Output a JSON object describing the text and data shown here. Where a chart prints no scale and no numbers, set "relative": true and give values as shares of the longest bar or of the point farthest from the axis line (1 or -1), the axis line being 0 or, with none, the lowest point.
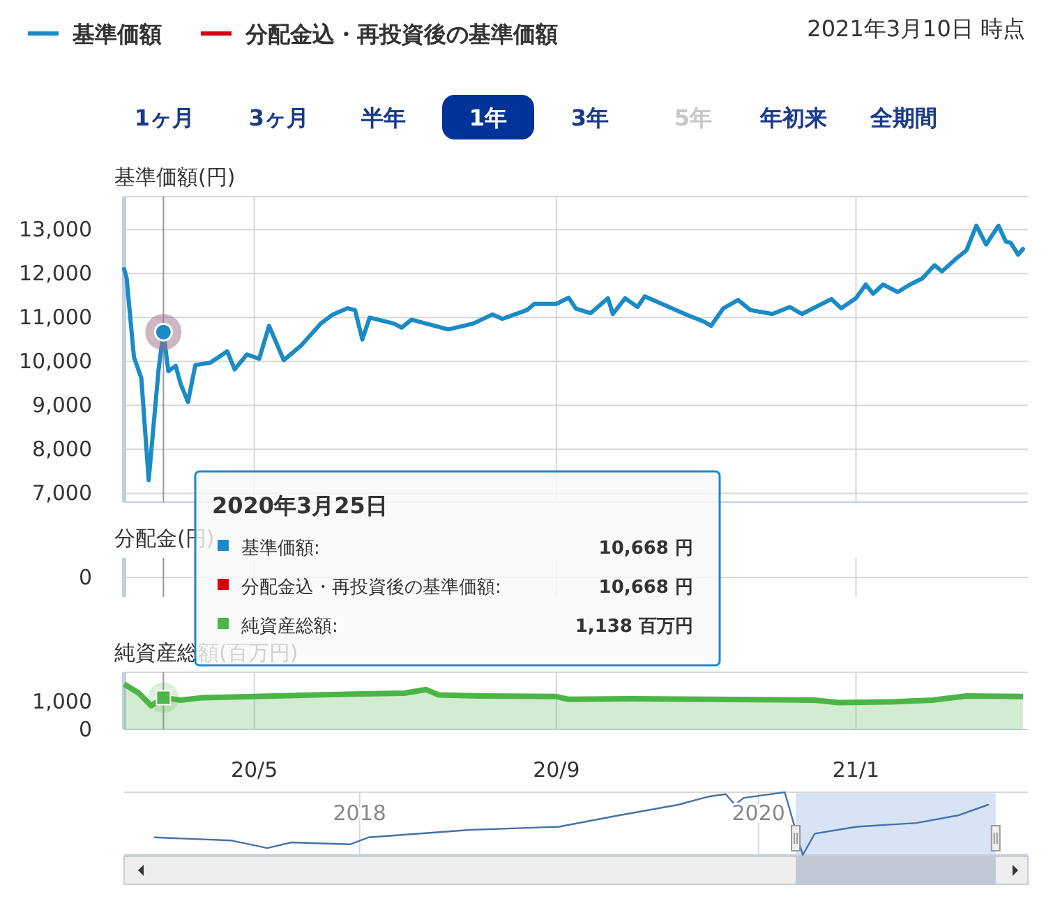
{
  "chart_data": [
    {
      "type": "line",
      "subtitle": "2021年3月10日 時点",
      "ylabel": "基準価額(円)",
      "legend": "top left",
      "grid": true,
      "tick_labels": "y",
      "xlim": [
        "2020-03-09",
        "2021-03-12"
      ],
      "ylim": [
        6800,
        13750
      ],
      "yticks": [
        {
          "value": 7000,
          "label": "7,000"
        },
        {
          "value": 8000,
          "label": "8,000"
        },
        {
          "value": 9000,
          "label": "9,000"
        },
        {
          "value": 10000,
          "label": "10,000"
        },
        {
          "value": 11000,
          "label": "11,000"
        },
        {
          "value": 12000,
          "label": "12,000"
        },
        {
          "value": 13000,
          "label": "13,000"
        }
      ],
      "ref_lines": [
        {
          "axis": "x",
          "value": "2020-03-25",
          "color": "#999999"
        }
      ],
      "x": [
        "2020-03-09",
        "2020-03-10",
        "2020-03-13",
        "2020-03-16",
        "2020-03-19",
        "2020-03-23",
        "2020-03-25",
        "2020-03-27",
        "2020-03-30",
        "2020-04-01",
        "2020-04-04",
        "2020-04-07",
        "2020-04-13",
        "2020-04-20",
        "2020-04-23",
        "2020-04-28",
        "2020-05-03",
        "2020-05-07",
        "2020-05-13",
        "2020-05-20",
        "2020-05-28",
        "2020-06-02",
        "2020-06-08",
        "2020-06-11",
        "2020-06-14",
        "2020-06-17",
        "2020-06-27",
        "2020-06-30",
        "2020-07-04",
        "2020-07-19",
        "2020-07-29",
        "2020-08-06",
        "2020-08-10",
        "2020-08-20",
        "2020-08-23",
        "2020-09-01",
        "2020-09-06",
        "2020-09-09",
        "2020-09-15",
        "2020-09-22",
        "2020-09-24",
        "2020-09-29",
        "2020-10-04",
        "2020-10-07",
        "2020-10-18",
        "2020-10-25",
        "2020-10-31",
        "2020-11-03",
        "2020-11-08",
        "2020-11-14",
        "2020-11-19",
        "2020-11-28",
        "2020-12-05",
        "2020-12-10",
        "2020-12-22",
        "2020-12-26",
        "2021-01-01",
        "2021-01-05",
        "2021-01-08",
        "2021-01-12",
        "2021-01-18",
        "2021-01-23",
        "2021-01-28",
        "2021-02-02",
        "2021-02-05",
        "2021-02-11",
        "2021-02-15",
        "2021-02-19",
        "2021-02-23",
        "2021-02-28",
        "2021-03-03",
        "2021-03-05",
        "2021-03-08",
        "2021-03-10"
      ],
      "series": [
        {
          "name": "基準価額",
          "color": "#1a8bc6",
          "values": [
            12100,
            11900,
            10100,
            9620,
            7300,
            9800,
            10668,
            9780,
            9900,
            9490,
            9080,
            9920,
            9970,
            10230,
            9820,
            10160,
            10060,
            10810,
            10030,
            10360,
            10860,
            11070,
            11210,
            11170,
            10500,
            11000,
            10860,
            10770,
            10950,
            10730,
            10860,
            11070,
            10970,
            11170,
            11310,
            11310,
            11450,
            11200,
            11100,
            11440,
            11080,
            11440,
            11240,
            11480,
            11210,
            11040,
            10910,
            10810,
            11210,
            11400,
            11170,
            11080,
            11240,
            11080,
            11420,
            11210,
            11440,
            11750,
            11540,
            11750,
            11580,
            11750,
            11890,
            12190,
            12050,
            12350,
            12530,
            13090,
            12660,
            13090,
            12730,
            12700,
            12430,
            12560
          ]
        },
        {
          "name": "分配金込・再投資後の基準価額",
          "color": "#d7000f",
          "values": [
            null,
            null,
            null,
            null,
            null,
            null,
            null,
            null,
            null,
            null,
            null,
            null,
            null,
            null,
            null,
            null,
            null,
            null,
            null,
            null,
            null,
            null,
            null,
            null,
            null,
            null,
            null,
            null,
            null,
            null,
            null,
            null,
            null,
            null,
            null,
            null,
            null,
            null,
            null,
            null,
            null,
            null,
            null,
            null,
            null,
            null,
            null,
            null,
            null,
            null,
            null,
            null,
            null,
            null,
            null,
            null,
            null,
            null,
            null,
            null,
            null,
            null,
            null,
            null,
            null,
            null,
            null,
            null,
            null,
            null,
            null,
            null,
            null,
            null
          ]
        }
      ],
      "annotations": [
        "1ヶ月",
        "3ヶ月",
        "半年",
        "1年",
        "3年",
        "5年",
        "年初来",
        "全期間",
        "2020年3月25日",
        "基準価額:",
        "10,668 円",
        "分配金込・再投資後の基準価額:",
        "10,668 円",
        "分配金(円)",
        "0"
      ]
    },
    {
      "type": "area",
      "ylabel": "純資産総額(百万円)",
      "grid": "x",
      "xlim": [
        "2020-03-09",
        "2021-03-12"
      ],
      "xticks": [
        {
          "value": "2020-05-01",
          "label": "20/5"
        },
        {
          "value": "2020-09-01",
          "label": "20/9"
        },
        {
          "value": "2021-01-01",
          "label": "21/1"
        }
      ],
      "ylim": [
        0,
        2050
      ],
      "yticks": [
        0,
        {
          "value": 1000,
          "label": "1,000"
        }
      ],
      "ref_lines": [
        {
          "axis": "x",
          "value": "2020-03-25",
          "color": "#999999"
        }
      ],
      "x": [
        "2020-03-09",
        "2020-03-15",
        "2020-03-20",
        "2020-03-25",
        "2020-04-01",
        "2020-04-10",
        "2020-05-01",
        "2020-06-01",
        "2020-07-01",
        "2020-07-10",
        "2020-07-15",
        "2020-08-01",
        "2020-09-01",
        "2020-09-06",
        "2020-10-01",
        "2020-11-01",
        "2020-12-01",
        "2020-12-15",
        "2020-12-25",
        "2021-01-15",
        "2021-02-01",
        "2021-02-15",
        "2021-03-10"
      ],
      "series": [
        {
          "color": "#4cb548",
          "values": [
            1630,
            1300,
            850,
            1138,
            1050,
            1140,
            1180,
            1250,
            1300,
            1430,
            1240,
            1200,
            1180,
            1080,
            1100,
            1080,
            1060,
            1050,
            960,
            990,
            1050,
            1200,
            1180
          ]
        }
      ],
      "annotations": [
        "純資産総額:",
        "1,138 百万円"
      ]
    },
    {
      "type": "line",
      "relative": true,
      "grid": "x",
      "tick_labels": "x",
      "xlim": [
        "2016-10-27",
        "2021-05-08"
      ],
      "xticks": [
        {
          "value": "2018-01-01",
          "label": "2018"
        },
        {
          "value": "2020-01-01",
          "label": "2020"
        }
      ],
      "bands": [
        {
          "axis": "x",
          "from": "2020-03-09",
          "to": "2021-03-10",
          "color": "#c6d9f1"
        }
      ],
      "x": [
        "2016-12-22",
        "2017-05-12",
        "2017-07-16",
        "2017-08-29",
        "2017-12-15",
        "2018-01-17",
        "2018-07-22",
        "2019-01-01",
        "2019-04-20",
        "2019-08-07",
        "2019-10-01",
        "2019-11-02",
        "2019-11-19",
        "2019-12-05",
        "2020-02-18",
        "2020-03-22",
        "2020-04-13",
        "2020-06-29",
        "2020-10-16",
        "2020-12-31",
        "2021-02-24"
      ],
      "series": [
        {
          "color": "#4572a7",
          "values": [
            0.28,
            0.23,
            0.11,
            0.2,
            0.17,
            0.28,
            0.4,
            0.45,
            0.63,
            0.8,
            0.93,
            0.97,
            0.8,
            0.91,
            1.0,
            0,
            0.34,
            0.45,
            0.51,
            0.63,
            0.8
          ]
        }
      ]
    }
  ]
}
